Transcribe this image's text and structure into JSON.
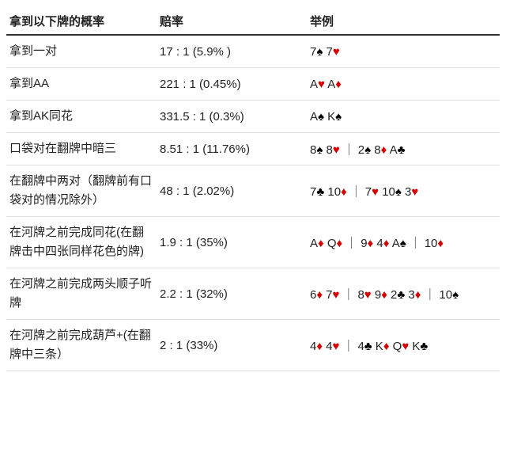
{
  "columns": [
    "拿到以下牌的概率",
    "赔率",
    "举例"
  ],
  "sep": "｜",
  "rows": [
    {
      "prob": "拿到一对",
      "odds": "17 : 1 (5.9% )",
      "cards": [
        [
          "7♠",
          "7♥"
        ]
      ]
    },
    {
      "prob": "拿到AA",
      "odds": "221 : 1 (0.45%)",
      "cards": [
        [
          "A♥",
          "A♦"
        ]
      ]
    },
    {
      "prob": "拿到AK同花",
      "odds": "331.5 : 1 (0.3%)",
      "cards": [
        [
          "A♠",
          "K♠"
        ]
      ]
    },
    {
      "prob": "口袋对在翻牌中暗三",
      "odds": "8.51 : 1 (11.76%)",
      "cards": [
        [
          "8♠",
          "8♥"
        ],
        [
          "2♠",
          "8♦",
          "A♣"
        ]
      ]
    },
    {
      "prob": "在翻牌中两对（翻牌前有口袋对的情况除外）",
      "odds": "48 : 1 (2.02%)",
      "cards": [
        [
          "7♣",
          "10♦"
        ],
        [
          "7♥",
          "10♠",
          "3♥"
        ]
      ]
    },
    {
      "prob": "在河牌之前完成同花(在翻牌击中四张同样花色的牌)",
      "odds": "1.9 : 1 (35%)",
      "cards": [
        [
          "A♦",
          "Q♦"
        ],
        [
          "9♦",
          "4♦",
          "A♠"
        ],
        [
          "10♦"
        ]
      ]
    },
    {
      "prob": "在河牌之前完成两头顺子听牌",
      "odds": "2.2 : 1 (32%)",
      "cards": [
        [
          "6♦",
          "7♥"
        ],
        [
          "8♥",
          "9♦",
          "2♣",
          "3♦"
        ],
        [
          "10♠"
        ]
      ]
    },
    {
      "prob": "在河牌之前完成葫芦+(在翻牌中三条）",
      "odds": "2 : 1 (33%)",
      "cards": [
        [
          "4♦",
          "4♥"
        ],
        [
          "4♣",
          "K♦",
          "Q♥",
          "K♣"
        ]
      ]
    }
  ]
}
